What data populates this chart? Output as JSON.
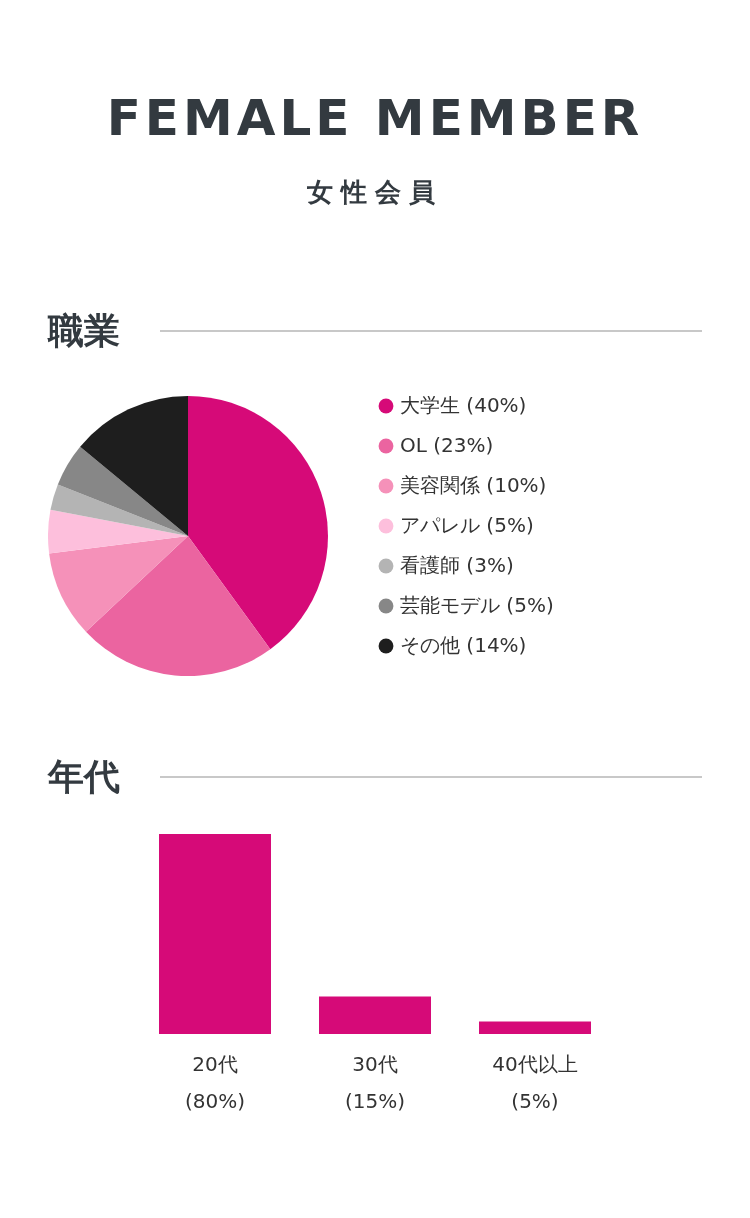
{
  "chart_data": [
    {
      "type": "pie",
      "title": "職業",
      "annotations": [
        "FEMALE MEMBER",
        "女性会員"
      ],
      "categories": [
        "大学生 (40%)",
        "OL (23%)",
        "美容関係 (10%)",
        "アパレル (5%)",
        "看護師 (3%)",
        "芸能モデル (5%)",
        "その他 (14%)"
      ],
      "values": [
        40,
        23,
        10,
        5,
        3,
        5,
        14
      ],
      "colors": [
        "#d60a78",
        "#eb64a0",
        "#f591b9",
        "#fdbfdc",
        "#b4b4b4",
        "#878787",
        "#1e1e1e"
      ],
      "legend": "right"
    },
    {
      "type": "bar",
      "title": "年代",
      "categories": [
        "20代",
        "30代",
        "40代以上"
      ],
      "values": [
        80,
        15,
        5
      ],
      "value_labels": [
        "(80%)",
        "(15%)",
        "(5%)"
      ],
      "color": "#d60a78"
    }
  ]
}
